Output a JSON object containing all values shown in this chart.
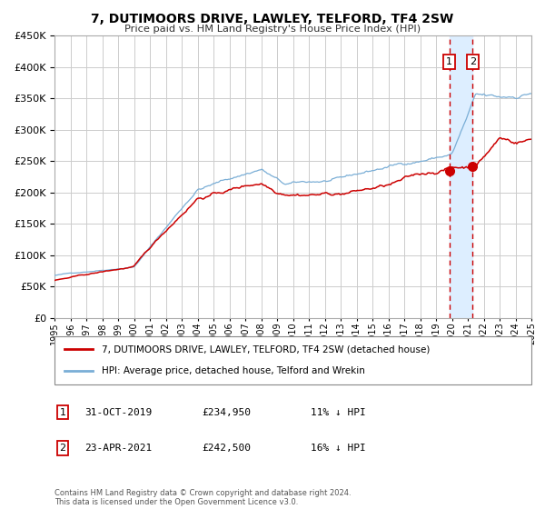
{
  "title": "7, DUTIMOORS DRIVE, LAWLEY, TELFORD, TF4 2SW",
  "subtitle": "Price paid vs. HM Land Registry's House Price Index (HPI)",
  "red_label": "7, DUTIMOORS DRIVE, LAWLEY, TELFORD, TF4 2SW (detached house)",
  "blue_label": "HPI: Average price, detached house, Telford and Wrekin",
  "annotation1_date": "31-OCT-2019",
  "annotation1_price": 234950,
  "annotation1_hpi": "11% ↓ HPI",
  "annotation1_year": 2019.83,
  "annotation2_date": "23-APR-2021",
  "annotation2_price": 242500,
  "annotation2_hpi": "16% ↓ HPI",
  "annotation2_year": 2021.31,
  "xmin": 1995,
  "xmax": 2025,
  "ymin": 0,
  "ymax": 450000,
  "yticks": [
    0,
    50000,
    100000,
    150000,
    200000,
    250000,
    300000,
    350000,
    400000,
    450000
  ],
  "footer_line1": "Contains HM Land Registry data © Crown copyright and database right 2024.",
  "footer_line2": "This data is licensed under the Open Government Licence v3.0.",
  "red_color": "#cc0000",
  "blue_color": "#7aaed6",
  "bg_color": "#ffffff",
  "grid_color": "#cccccc",
  "highlight_color": "#ddeeff",
  "dashed_line_color": "#cc0000"
}
